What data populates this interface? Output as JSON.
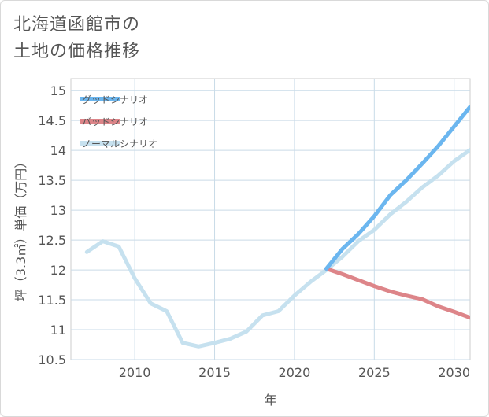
{
  "title": {
    "line1": "北海道函館市の",
    "line2": "土地の価格推移"
  },
  "chart_data": {
    "type": "line",
    "xlabel": "年",
    "ylabel": "坪（3.3㎡）単価（万円）",
    "xlim": [
      2006,
      2031
    ],
    "ylim": [
      10.5,
      15.2
    ],
    "xticks": [
      2010,
      2015,
      2020,
      2025,
      2030
    ],
    "yticks": [
      10.5,
      11,
      11.5,
      12,
      12.5,
      13,
      13.5,
      14,
      14.5,
      15
    ],
    "ytick_labels": [
      "10.5",
      "11",
      "11.5",
      "12",
      "12.5",
      "13",
      "13.5",
      "14",
      "14.5",
      "15"
    ],
    "grid": true,
    "legend_position": "top-left",
    "series": [
      {
        "name": "グッドシナリオ",
        "color": "#6bb6ef",
        "x": [
          2022,
          2023,
          2024,
          2025,
          2026,
          2027,
          2028,
          2029,
          2030,
          2031
        ],
        "y": [
          12.02,
          12.35,
          12.6,
          12.9,
          13.25,
          13.5,
          13.78,
          14.07,
          14.4,
          14.73
        ]
      },
      {
        "name": "バッドシナリオ",
        "color": "#dd8589",
        "x": [
          2022,
          2023,
          2024,
          2025,
          2026,
          2027,
          2028,
          2029,
          2030,
          2031
        ],
        "y": [
          12.02,
          11.93,
          11.83,
          11.73,
          11.64,
          11.57,
          11.51,
          11.39,
          11.3,
          11.2
        ]
      },
      {
        "name": "ノーマルシナリオ",
        "color": "#c6e1ef",
        "x": [
          2007,
          2008,
          2009,
          2010,
          2011,
          2012,
          2013,
          2014,
          2015,
          2016,
          2017,
          2018,
          2019,
          2020,
          2021,
          2022,
          2023,
          2024,
          2025,
          2026,
          2027,
          2028,
          2029,
          2030,
          2031
        ],
        "y": [
          12.3,
          12.48,
          12.39,
          11.86,
          11.44,
          11.31,
          10.78,
          10.72,
          10.78,
          10.85,
          10.97,
          11.24,
          11.31,
          11.57,
          11.8,
          12.0,
          12.22,
          12.48,
          12.67,
          12.93,
          13.14,
          13.38,
          13.58,
          13.82,
          14.01
        ]
      }
    ]
  }
}
